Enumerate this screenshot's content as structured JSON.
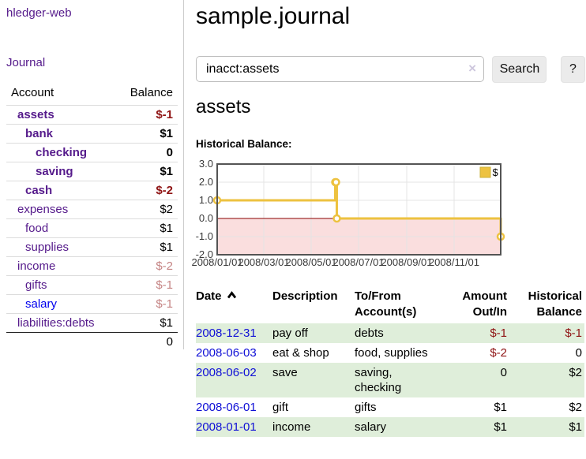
{
  "app": {
    "brand": "hledger-web",
    "nav_journal": "Journal"
  },
  "sidebar": {
    "account_header": "Account",
    "balance_header": "Balance",
    "accounts": [
      {
        "name": "assets",
        "balance": "$-1",
        "depth": 1,
        "bold": true,
        "balance_tone": "negative-strong"
      },
      {
        "name": "bank",
        "balance": "$1",
        "depth": 2,
        "bold": true,
        "balance_tone": "normal"
      },
      {
        "name": "checking",
        "balance": "0",
        "depth": 3,
        "bold": true,
        "balance_tone": "normal"
      },
      {
        "name": "saving",
        "balance": "$1",
        "depth": 3,
        "bold": true,
        "balance_tone": "normal"
      },
      {
        "name": "cash",
        "balance": "$-2",
        "depth": 2,
        "bold": true,
        "balance_tone": "negative-strong"
      },
      {
        "name": "expenses",
        "balance": "$2",
        "depth": 1,
        "bold": false,
        "balance_tone": "normal"
      },
      {
        "name": "food",
        "balance": "$1",
        "depth": 2,
        "bold": false,
        "balance_tone": "normal"
      },
      {
        "name": "supplies",
        "balance": "$1",
        "depth": 2,
        "bold": false,
        "balance_tone": "normal"
      },
      {
        "name": "income",
        "balance": "$-2",
        "depth": 1,
        "bold": false,
        "balance_tone": "negative-muted"
      },
      {
        "name": "gifts",
        "balance": "$-1",
        "depth": 2,
        "bold": false,
        "balance_tone": "negative-muted"
      },
      {
        "name": "salary",
        "balance": "$-1",
        "depth": 2,
        "bold": false,
        "balance_tone": "negative-muted"
      },
      {
        "name": "liabilities:debts",
        "balance": "$1",
        "depth": 1,
        "bold": false,
        "balance_tone": "normal"
      }
    ],
    "total": "0"
  },
  "header": {
    "title": "sample.journal"
  },
  "search": {
    "value": "inacct:assets",
    "clear_icon": "×",
    "button": "Search",
    "help_button": "?"
  },
  "account_page": {
    "title": "assets",
    "chart_label": "Historical Balance:"
  },
  "chart_data": {
    "type": "line",
    "step": true,
    "title": "Historical Balance:",
    "x_range": [
      "2008-01-01",
      "2008-12-31"
    ],
    "ylim": [
      -2,
      3
    ],
    "y_ticks": [
      "3.0",
      "2.0",
      "1.0",
      "0.0",
      "-1.0",
      "-2.0"
    ],
    "x_ticks": [
      "2008/01/01",
      "2008/03/01",
      "2008/05/01",
      "2008/07/01",
      "2008/09/01",
      "2008/11/01"
    ],
    "grid": true,
    "legend": {
      "label": "$",
      "position": "top-right",
      "color": "#edc240"
    },
    "series": [
      {
        "name": "$",
        "color": "#edc240",
        "points": [
          {
            "x": "2008-01-01",
            "y": 1
          },
          {
            "x": "2008-06-01",
            "y": 2
          },
          {
            "x": "2008-06-02",
            "y": 2
          },
          {
            "x": "2008-06-03",
            "y": 0
          },
          {
            "x": "2008-12-31",
            "y": -1
          }
        ]
      }
    ],
    "negative_region_fill": "#fadede",
    "zero_line_color": "#8b0000",
    "border_color": "#545454"
  },
  "register": {
    "headers": {
      "date": "Date",
      "description": "Description",
      "accounts": "To/From Account(s)",
      "amount": "Amount Out/In",
      "balance": "Historical Balance"
    },
    "rows": [
      {
        "date": "2008-12-31",
        "description": "pay off",
        "accounts": "debts",
        "amount": "$-1",
        "balance": "$-1"
      },
      {
        "date": "2008-06-03",
        "description": "eat & shop",
        "accounts": "food, supplies",
        "amount": "$-2",
        "balance": "0"
      },
      {
        "date": "2008-06-02",
        "description": "save",
        "accounts": "saving, checking",
        "amount": "0",
        "balance": "$2"
      },
      {
        "date": "2008-06-01",
        "description": "gift",
        "accounts": "gifts",
        "amount": "$1",
        "balance": "$2"
      },
      {
        "date": "2008-01-01",
        "description": "income",
        "accounts": "salary",
        "amount": "$1",
        "balance": "$1"
      }
    ]
  }
}
